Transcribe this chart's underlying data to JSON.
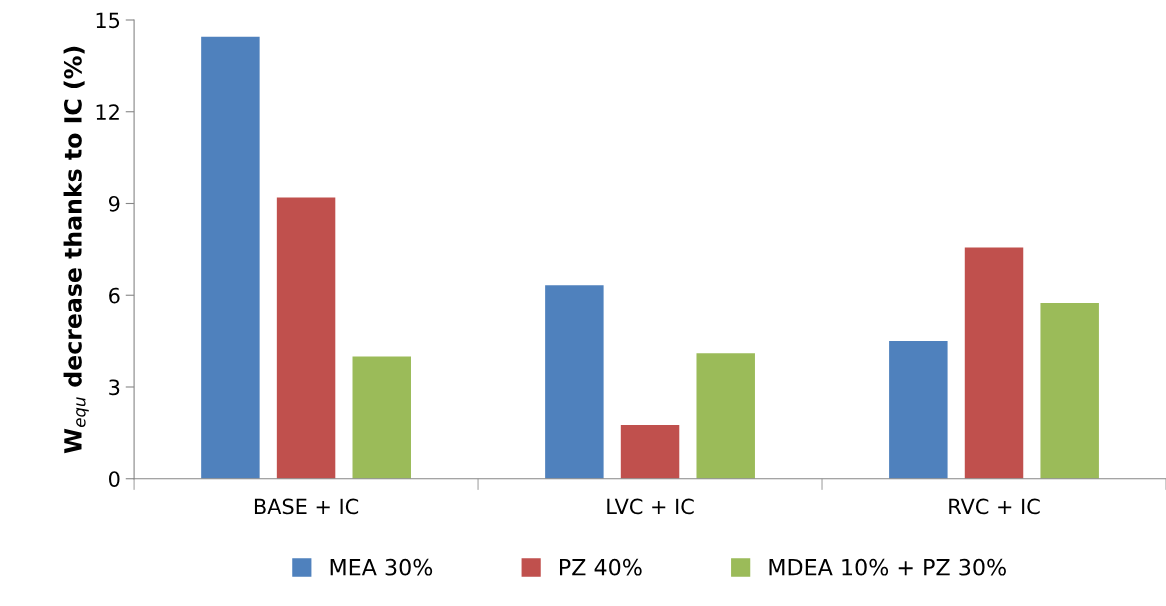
{
  "chart_data": {
    "type": "bar",
    "ylabel": "W$_{equ}$ decrease thanks to IC (%)",
    "categories": [
      "BASE + IC",
      "LVC + IC",
      "RVC + IC"
    ],
    "series": [
      {
        "name": "MEA 30%",
        "color": "#4f81bd",
        "values": [
          14.45,
          6.33,
          4.5
        ]
      },
      {
        "name": "PZ 40%",
        "color": "#c0504d",
        "values": [
          9.2,
          1.76,
          7.56
        ]
      },
      {
        "name": "MDEA 10% + PZ 30%",
        "color": "#9bbb59",
        "values": [
          4.0,
          4.1,
          5.75
        ]
      }
    ],
    "ylim": [
      0,
      15
    ],
    "yticks": [
      0,
      3,
      6,
      9,
      12,
      15
    ],
    "grid": false,
    "legend": "bottom"
  }
}
